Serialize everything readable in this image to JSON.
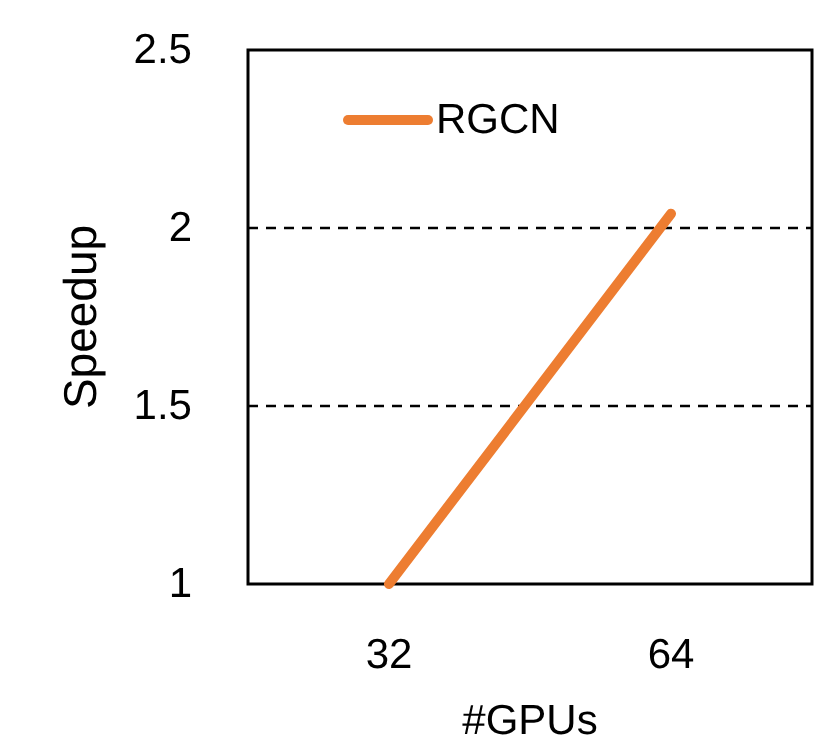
{
  "chart_data": {
    "type": "line",
    "xlabel": "#GPUs",
    "ylabel": "Speedup",
    "categories": [
      "32",
      "64"
    ],
    "series": [
      {
        "name": "RGCN",
        "color": "#ed7d31",
        "values": [
          1.0,
          2.04
        ]
      }
    ],
    "ylim": [
      1,
      2.5
    ],
    "yticks": [
      1,
      1.5,
      2,
      2.5
    ],
    "grid": "y",
    "legend": "top left",
    "marker": "none",
    "line_style": "solid"
  }
}
